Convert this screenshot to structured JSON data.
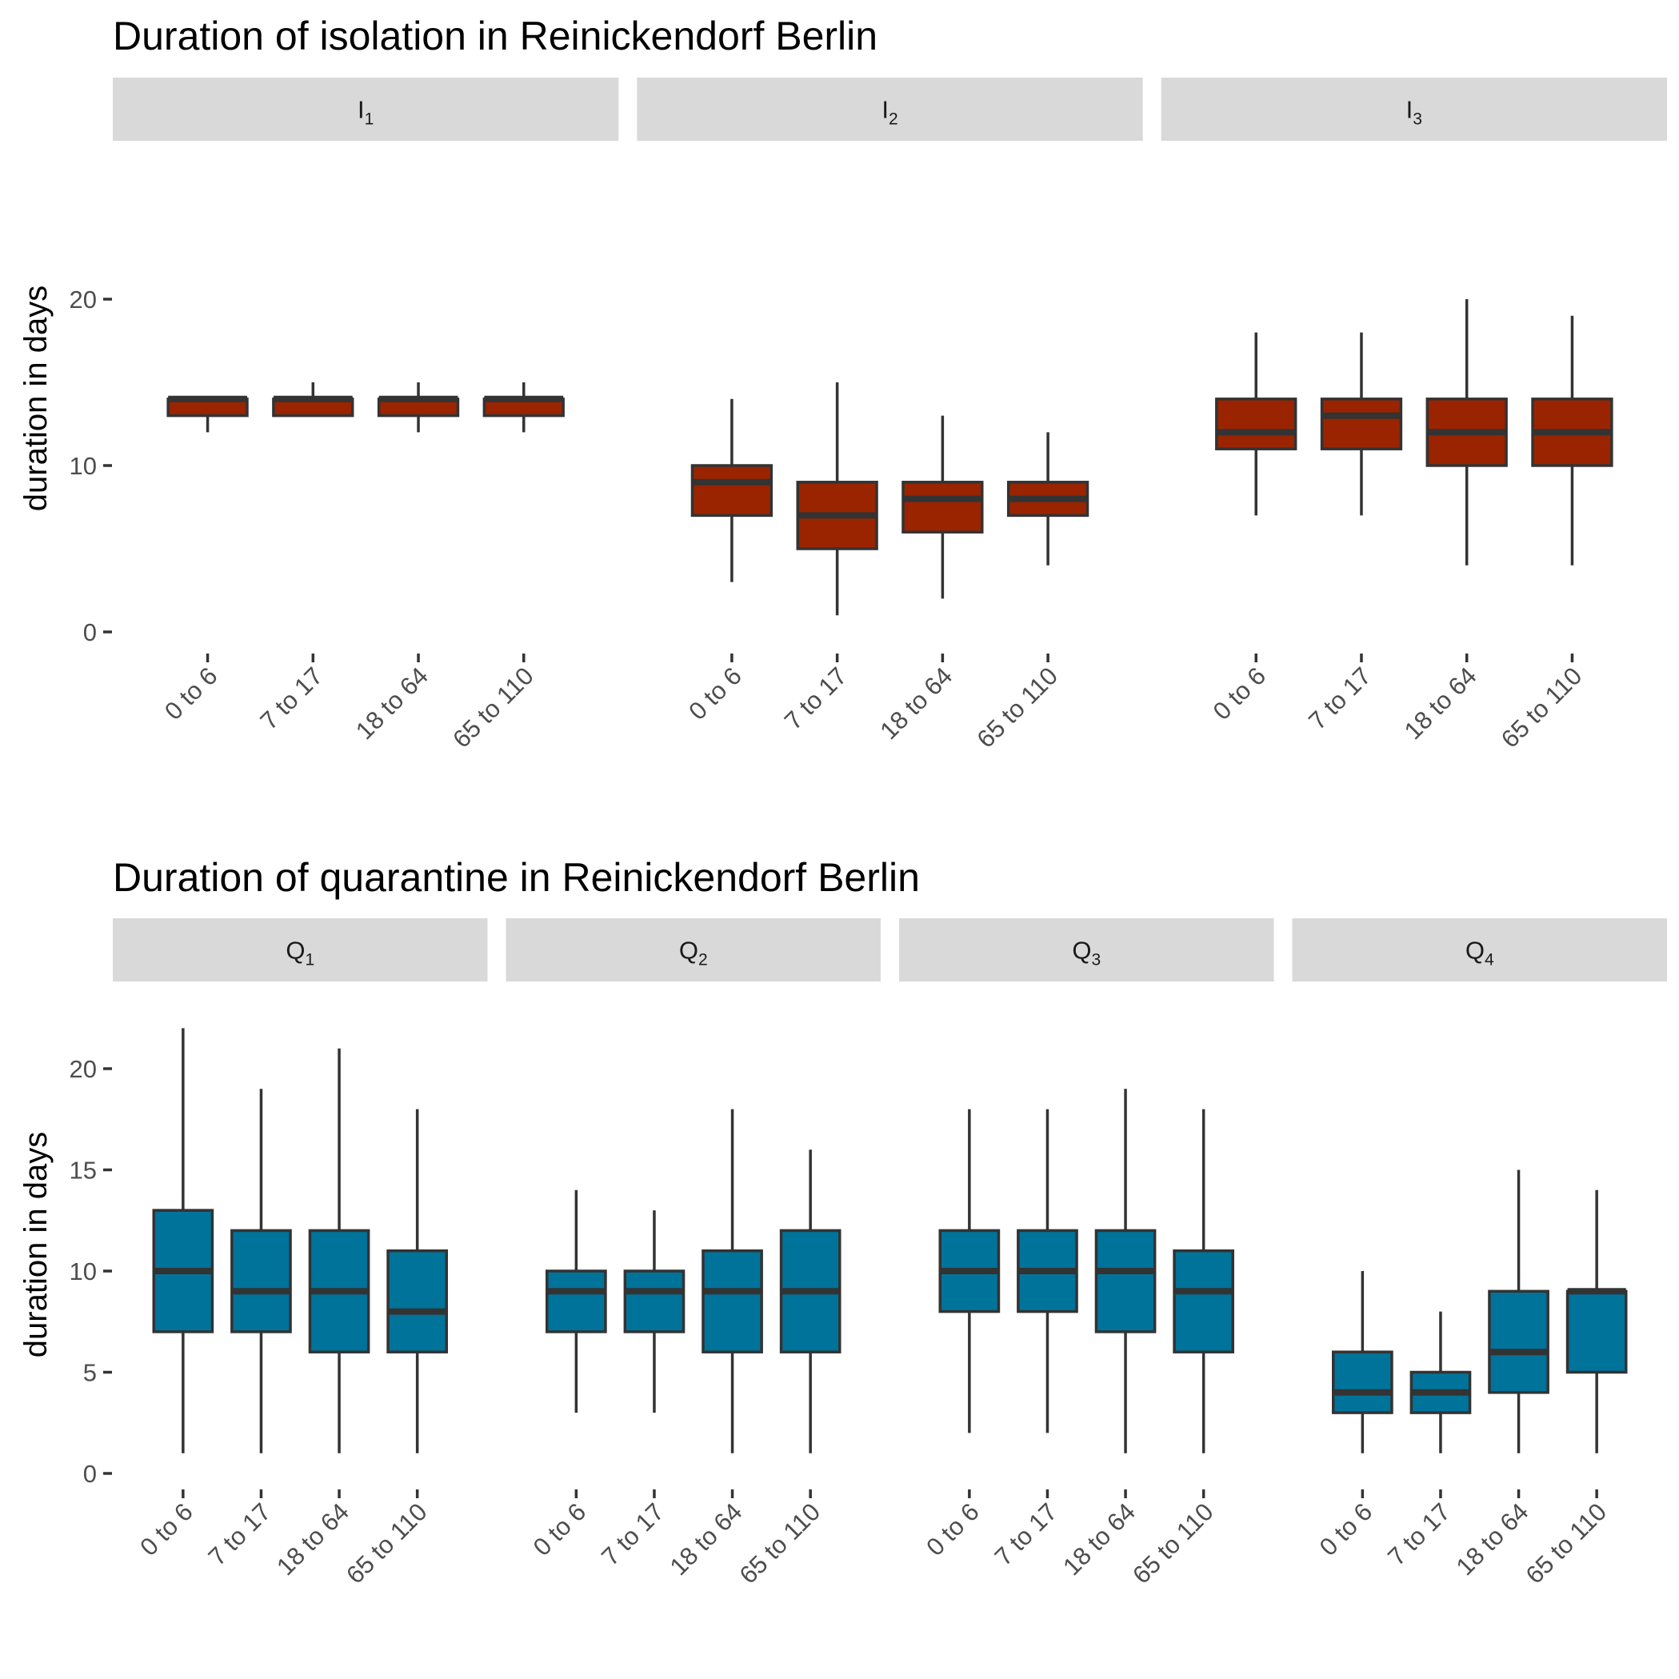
{
  "chart_data": [
    {
      "type": "boxplot",
      "title": "Duration of isolation in Reinickendorf Berlin",
      "ylabel": "duration in days",
      "ylim": [
        0,
        20
      ],
      "yticks": [
        0,
        10,
        20
      ],
      "fill_color": "#9a2400",
      "categories": [
        "0 to 6",
        "7 to 17",
        "18 to 64",
        "65 to 110"
      ],
      "panels": [
        {
          "label": "I",
          "sub": "1",
          "boxes": [
            {
              "category": "0 to 6",
              "min": 12,
              "q1": 13,
              "median": 14,
              "q3": 14,
              "max": 14
            },
            {
              "category": "7 to 17",
              "min": 13,
              "q1": 13,
              "median": 14,
              "q3": 14,
              "max": 15
            },
            {
              "category": "18 to 64",
              "min": 12,
              "q1": 13,
              "median": 14,
              "q3": 14,
              "max": 15
            },
            {
              "category": "65 to 110",
              "min": 12,
              "q1": 13,
              "median": 14,
              "q3": 14,
              "max": 15
            }
          ]
        },
        {
          "label": "I",
          "sub": "2",
          "boxes": [
            {
              "category": "0 to 6",
              "min": 3,
              "q1": 7,
              "median": 9,
              "q3": 10,
              "max": 14
            },
            {
              "category": "7 to 17",
              "min": 1,
              "q1": 5,
              "median": 7,
              "q3": 9,
              "max": 15
            },
            {
              "category": "18 to 64",
              "min": 2,
              "q1": 6,
              "median": 8,
              "q3": 9,
              "max": 13
            },
            {
              "category": "65 to 110",
              "min": 4,
              "q1": 7,
              "median": 8,
              "q3": 9,
              "max": 12
            }
          ]
        },
        {
          "label": "I",
          "sub": "3",
          "boxes": [
            {
              "category": "0 to 6",
              "min": 7,
              "q1": 11,
              "median": 12,
              "q3": 14,
              "max": 18
            },
            {
              "category": "7 to 17",
              "min": 7,
              "q1": 11,
              "median": 13,
              "q3": 14,
              "max": 18
            },
            {
              "category": "18 to 64",
              "min": 4,
              "q1": 10,
              "median": 12,
              "q3": 14,
              "max": 20
            },
            {
              "category": "65 to 110",
              "min": 4,
              "q1": 10,
              "median": 12,
              "q3": 14,
              "max": 19
            }
          ]
        }
      ]
    },
    {
      "type": "boxplot",
      "title": "Duration of quarantine in Reinickendorf Berlin",
      "ylabel": "duration in days",
      "ylim": [
        0,
        22
      ],
      "yticks": [
        0,
        5,
        10,
        15,
        20
      ],
      "fill_color": "#00739a",
      "categories": [
        "0 to 6",
        "7 to 17",
        "18 to 64",
        "65 to 110"
      ],
      "panels": [
        {
          "label": "Q",
          "sub": "1",
          "boxes": [
            {
              "category": "0 to 6",
              "min": 1,
              "q1": 7,
              "median": 10,
              "q3": 13,
              "max": 22
            },
            {
              "category": "7 to 17",
              "min": 1,
              "q1": 7,
              "median": 9,
              "q3": 12,
              "max": 19
            },
            {
              "category": "18 to 64",
              "min": 1,
              "q1": 6,
              "median": 9,
              "q3": 12,
              "max": 21
            },
            {
              "category": "65 to 110",
              "min": 1,
              "q1": 6,
              "median": 8,
              "q3": 11,
              "max": 18
            }
          ]
        },
        {
          "label": "Q",
          "sub": "2",
          "boxes": [
            {
              "category": "0 to 6",
              "min": 3,
              "q1": 7,
              "median": 9,
              "q3": 10,
              "max": 14
            },
            {
              "category": "7 to 17",
              "min": 3,
              "q1": 7,
              "median": 9,
              "q3": 10,
              "max": 13
            },
            {
              "category": "18 to 64",
              "min": 1,
              "q1": 6,
              "median": 9,
              "q3": 11,
              "max": 18
            },
            {
              "category": "65 to 110",
              "min": 1,
              "q1": 6,
              "median": 9,
              "q3": 12,
              "max": 16
            }
          ]
        },
        {
          "label": "Q",
          "sub": "3",
          "boxes": [
            {
              "category": "0 to 6",
              "min": 2,
              "q1": 8,
              "median": 10,
              "q3": 12,
              "max": 18
            },
            {
              "category": "7 to 17",
              "min": 2,
              "q1": 8,
              "median": 10,
              "q3": 12,
              "max": 18
            },
            {
              "category": "18 to 64",
              "min": 1,
              "q1": 7,
              "median": 10,
              "q3": 12,
              "max": 19
            },
            {
              "category": "65 to 110",
              "min": 1,
              "q1": 6,
              "median": 9,
              "q3": 11,
              "max": 18
            }
          ]
        },
        {
          "label": "Q",
          "sub": "4",
          "boxes": [
            {
              "category": "0 to 6",
              "min": 1,
              "q1": 3,
              "median": 4,
              "q3": 6,
              "max": 10
            },
            {
              "category": "7 to 17",
              "min": 1,
              "q1": 3,
              "median": 4,
              "q3": 5,
              "max": 8
            },
            {
              "category": "18 to 64",
              "min": 1,
              "q1": 4,
              "median": 6,
              "q3": 9,
              "max": 15
            },
            {
              "category": "65 to 110",
              "min": 1,
              "q1": 5,
              "median": 9,
              "q3": 9,
              "max": 14
            }
          ]
        }
      ]
    }
  ]
}
